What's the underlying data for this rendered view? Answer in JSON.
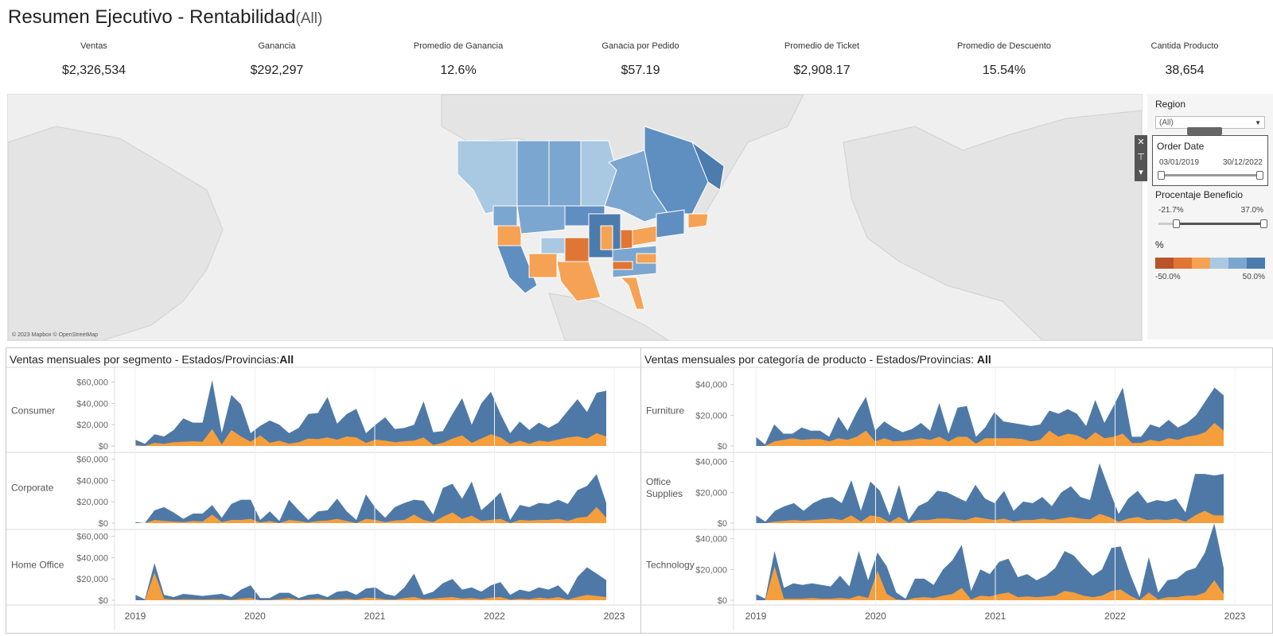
{
  "header": {
    "title": "Resumen Ejecutivo - Rentabilidad",
    "title_suffix": "(All)"
  },
  "kpis": [
    {
      "label": "Ventas",
      "value": "$2,326,534"
    },
    {
      "label": "Ganancia",
      "value": "$292,297"
    },
    {
      "label": "Promedio de Ganancia",
      "value": "12.6%"
    },
    {
      "label": "Ganacia por Pedido",
      "value": "$57.19"
    },
    {
      "label": "Promedio de Ticket",
      "value": "$2,908.17"
    },
    {
      "label": "Promedio de Descuento",
      "value": "15.54%"
    },
    {
      "label": "Cantida Producto",
      "value": "38,654"
    }
  ],
  "map": {
    "attribution": "© 2023 Mapbox © OpenStreetMap"
  },
  "filters": {
    "region": {
      "label": "Region",
      "selected": "(All)"
    },
    "order_date": {
      "label": "Order Date",
      "start": "03/01/2019",
      "end": "30/12/2022",
      "toolbar_icons": [
        "close-icon",
        "pin-icon",
        "dropdown-icon"
      ]
    },
    "beneficio": {
      "label": "Procentaje Beneficio",
      "min": "-21.7%",
      "max": "37.0%",
      "low_value": -21.7,
      "high_value": 37.0
    },
    "color_legend": {
      "label": "%",
      "min": "-50.0%",
      "max": "50.0%",
      "colors": [
        "#b9532a",
        "#e07634",
        "#f5a254",
        "#a9c8e2",
        "#7ba6cf",
        "#4c7bad"
      ]
    }
  },
  "colors": {
    "sales_blue": "#4e79a7",
    "profit_orange": "#f59e3c"
  },
  "chart_data": [
    {
      "type": "area",
      "title": "Ventas mensuales por segmento - Estados/Provincias:",
      "title_value": "All",
      "x_ticks": [
        "2019",
        "2020",
        "2021",
        "2022",
        "2023"
      ],
      "y_ticks": [
        "$60,000",
        "$40,000",
        "$20,000",
        "$0"
      ],
      "y_range": [
        0,
        65000
      ],
      "rows": [
        {
          "name": "Consumer",
          "sales": [
            6000,
            2000,
            11000,
            9000,
            15000,
            26000,
            22000,
            22000,
            62000,
            12000,
            48000,
            39000,
            12000,
            19000,
            24000,
            20000,
            12000,
            17000,
            30000,
            31000,
            46000,
            21000,
            30000,
            35000,
            12000,
            20000,
            27000,
            16000,
            17000,
            20000,
            42000,
            13000,
            14000,
            30000,
            45000,
            20000,
            40000,
            51000,
            30000,
            12000,
            23000,
            15000,
            22000,
            17000,
            22000,
            33000,
            44000,
            32000,
            50000,
            52000
          ],
          "profit": [
            1000,
            0,
            3000,
            2000,
            3500,
            4000,
            4500,
            4000,
            16000,
            1500,
            15000,
            9000,
            4000,
            10000,
            3000,
            5000,
            2000,
            3500,
            7000,
            6500,
            8000,
            6000,
            9000,
            8000,
            3000,
            6000,
            5000,
            3500,
            4500,
            5000,
            8000,
            1000,
            3000,
            7000,
            10000,
            3000,
            7000,
            11000,
            8000,
            2000,
            5000,
            2000,
            5000,
            4000,
            6000,
            8000,
            9000,
            7000,
            12000,
            9000
          ]
        },
        {
          "name": "Corporate",
          "sales": [
            1000,
            0,
            12000,
            15000,
            10000,
            4000,
            9000,
            9000,
            17000,
            5000,
            18000,
            22000,
            22000,
            3000,
            11000,
            2000,
            22000,
            12000,
            3000,
            11000,
            12000,
            23000,
            11000,
            3000,
            27000,
            14000,
            5000,
            15000,
            19000,
            22000,
            21000,
            8000,
            33000,
            37000,
            23000,
            39000,
            12000,
            20000,
            29000,
            3000,
            17000,
            15000,
            19000,
            18000,
            22000,
            18000,
            31000,
            35000,
            46000,
            19000
          ],
          "profit": [
            0,
            0,
            3000,
            2000,
            1500,
            1000,
            2000,
            1500,
            8000,
            1000,
            3000,
            3000,
            4000,
            500,
            2000,
            0,
            3000,
            2000,
            500,
            2000,
            2500,
            4000,
            2000,
            0,
            4000,
            3000,
            1000,
            2500,
            3000,
            8000,
            3000,
            1000,
            6000,
            10000,
            4000,
            7000,
            2000,
            3000,
            4000,
            0,
            3000,
            2500,
            3000,
            3000,
            4000,
            2000,
            5000,
            6000,
            15000,
            5000
          ]
        },
        {
          "name": "Home Office",
          "sales": [
            5000,
            1000,
            35000,
            5000,
            3000,
            6000,
            5000,
            4000,
            5000,
            6000,
            3000,
            10000,
            14000,
            2000,
            2000,
            7000,
            7000,
            2000,
            5000,
            6000,
            3000,
            8000,
            9000,
            5000,
            11000,
            12000,
            6000,
            4000,
            12000,
            25000,
            5000,
            8000,
            16000,
            20000,
            10000,
            12000,
            8000,
            14000,
            17000,
            5000,
            10000,
            8000,
            12000,
            10000,
            14000,
            5000,
            22000,
            31000,
            25000,
            19000
          ],
          "profit": [
            0,
            0,
            26000,
            1500,
            500,
            1000,
            800,
            500,
            800,
            1000,
            200,
            1500,
            2000,
            0,
            200,
            1000,
            2000,
            300,
            800,
            1500,
            500,
            1000,
            1500,
            600,
            2500,
            2000,
            800,
            500,
            2000,
            3000,
            1000,
            1500,
            2500,
            3000,
            1500,
            2000,
            1000,
            2500,
            3000,
            600,
            1500,
            1000,
            2500,
            1500,
            3000,
            600,
            3000,
            5000,
            4000,
            3000
          ]
        }
      ]
    },
    {
      "type": "area",
      "title": "Ventas mensuales por categoría de producto - Estados/Provincias: ",
      "title_value": "All",
      "x_ticks": [
        "2019",
        "2020",
        "2021",
        "2022",
        "2023"
      ],
      "y_ticks": [
        "$40,000",
        "$20,000",
        "$0"
      ],
      "y_range": [
        0,
        45000
      ],
      "rows": [
        {
          "name": "Furniture",
          "sales": [
            6000,
            1000,
            14000,
            8000,
            8000,
            12000,
            10000,
            10000,
            6000,
            19000,
            10000,
            22000,
            32000,
            10000,
            16000,
            12000,
            9000,
            11000,
            15000,
            10000,
            28000,
            8000,
            25000,
            26000,
            6000,
            12000,
            22000,
            16000,
            15000,
            14000,
            13000,
            14000,
            23000,
            21000,
            24000,
            21000,
            13000,
            30000,
            15000,
            26000,
            38000,
            6000,
            6000,
            14000,
            12000,
            17000,
            12000,
            15000,
            20000,
            29000,
            38000,
            33000
          ],
          "profit": [
            0,
            0,
            3000,
            4000,
            5000,
            4000,
            4500,
            4500,
            3000,
            5000,
            4000,
            6000,
            10000,
            3000,
            5000,
            3000,
            3500,
            4000,
            5000,
            4000,
            6000,
            3000,
            6000,
            6000,
            1500,
            5000,
            5000,
            5000,
            5000,
            4500,
            3000,
            4000,
            10000,
            6000,
            8000,
            7000,
            4000,
            9000,
            5000,
            6000,
            8000,
            2000,
            2000,
            4000,
            3000,
            5000,
            4000,
            6000,
            7000,
            9000,
            15000,
            10000
          ]
        },
        {
          "name": "Office Supplies",
          "sales": [
            5000,
            1000,
            8000,
            11000,
            13000,
            8000,
            13000,
            16000,
            17000,
            13000,
            28000,
            8000,
            27000,
            21000,
            5000,
            25000,
            2000,
            11000,
            14000,
            21000,
            20000,
            17000,
            14000,
            25000,
            16000,
            13000,
            21000,
            8000,
            14000,
            13000,
            17000,
            11000,
            20000,
            24000,
            17000,
            15000,
            39000,
            22000,
            6000,
            16000,
            21000,
            13000,
            15000,
            14000,
            16000,
            7000,
            32000,
            32000,
            31000,
            32000
          ],
          "profit": [
            0,
            0,
            1000,
            1500,
            2000,
            1500,
            2000,
            2500,
            3000,
            2000,
            5000,
            1000,
            5000,
            4000,
            500,
            4000,
            0,
            2000,
            2000,
            3000,
            3000,
            2500,
            2000,
            4000,
            3000,
            2000,
            3000,
            1000,
            2000,
            2000,
            3000,
            2000,
            3000,
            4000,
            3000,
            2500,
            6000,
            4000,
            1000,
            3000,
            4000,
            2000,
            2500,
            2000,
            3000,
            1000,
            5000,
            8000,
            5000,
            5000
          ]
        },
        {
          "name": "Technology",
          "sales": [
            4000,
            1000,
            32000,
            8000,
            11000,
            10000,
            11000,
            10000,
            9000,
            16000,
            9000,
            32000,
            13000,
            31000,
            22000,
            5000,
            1000,
            14000,
            14000,
            10000,
            20000,
            26000,
            36000,
            6000,
            20000,
            17000,
            25000,
            27000,
            15000,
            17000,
            13000,
            16000,
            21000,
            32000,
            29000,
            22000,
            16000,
            20000,
            34000,
            35000,
            17000,
            2000,
            28000,
            5000,
            13000,
            14000,
            19000,
            21000,
            31000,
            50000,
            21000
          ],
          "profit": [
            0,
            0,
            22000,
            1000,
            1000,
            1000,
            1500,
            1000,
            1000,
            1500,
            1000,
            3000,
            1500,
            19000,
            4000,
            500,
            0,
            1500,
            2000,
            1500,
            3000,
            4000,
            8000,
            500,
            3000,
            2500,
            4000,
            5000,
            2000,
            2500,
            2000,
            2500,
            3000,
            6000,
            5000,
            3000,
            2000,
            3000,
            6000,
            7000,
            3000,
            0,
            5000,
            500,
            2000,
            2000,
            3000,
            3000,
            5000,
            13000,
            4000
          ]
        }
      ]
    }
  ]
}
